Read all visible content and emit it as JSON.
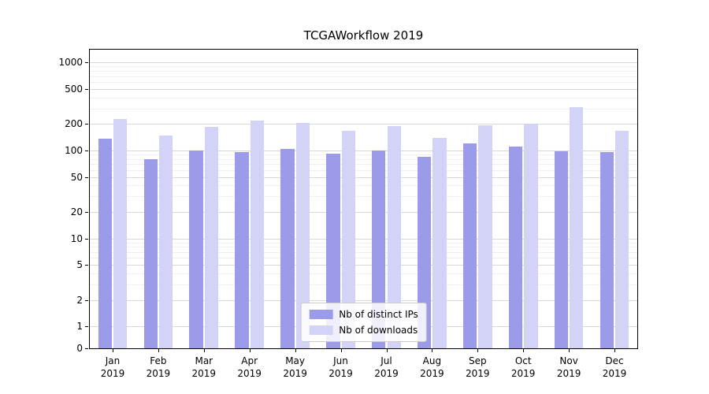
{
  "chart_data": {
    "type": "bar",
    "title": "TCGAWorkflow 2019",
    "year": "2019",
    "categories": [
      "Jan",
      "Feb",
      "Mar",
      "Apr",
      "May",
      "Jun",
      "Jul",
      "Aug",
      "Sep",
      "Oct",
      "Nov",
      "Dec"
    ],
    "series": [
      {
        "name": "Nb of distinct IPs",
        "color": "#9b9bea",
        "values": [
          135,
          80,
          100,
          95,
          105,
          92,
          100,
          85,
          120,
          110,
          98,
          96
        ]
      },
      {
        "name": "Nb of downloads",
        "color": "#d3d3f7",
        "values": [
          230,
          148,
          185,
          220,
          205,
          168,
          188,
          140,
          192,
          200,
          310,
          168
        ]
      }
    ],
    "y_axis": {
      "scale": "symlog",
      "ticks": [
        0,
        1,
        2,
        5,
        10,
        20,
        50,
        100,
        200,
        500,
        1000
      ],
      "minor_gridlines": [
        3,
        4,
        6,
        7,
        8,
        9,
        30,
        40,
        60,
        70,
        80,
        90,
        300,
        400,
        600,
        700,
        800,
        900
      ],
      "range_top": 1400
    },
    "grid": true,
    "legend_position": "lower center"
  }
}
